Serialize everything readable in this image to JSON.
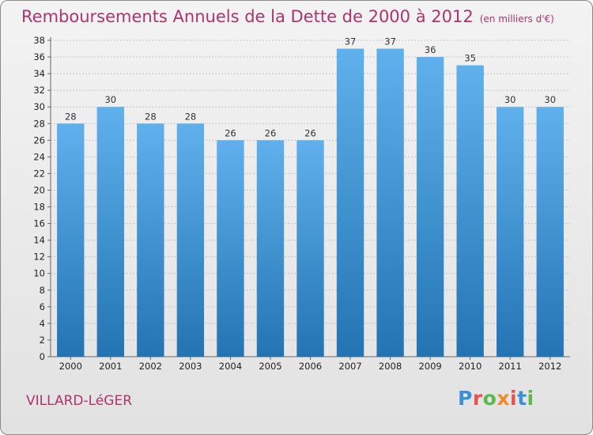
{
  "title": "Remboursements Annuels de la Dette de 2000 à 2012",
  "unit": "(en milliers d'€)",
  "commune": "VILLARD-LéGER",
  "logo": {
    "text": "Proxiti",
    "colors": [
      "#3b8fd6",
      "#e8534b",
      "#5bb84b",
      "#f08a24",
      "#e8534b",
      "#3b8fd6",
      "#5bb84b"
    ]
  },
  "chart_data": {
    "type": "bar",
    "categories": [
      "2000",
      "2001",
      "2002",
      "2003",
      "2004",
      "2005",
      "2006",
      "2007",
      "2008",
      "2009",
      "2010",
      "2011",
      "2012"
    ],
    "values": [
      28,
      30,
      28,
      28,
      26,
      26,
      26,
      37,
      37,
      36,
      35,
      30,
      30
    ],
    "ylim": [
      0,
      38
    ],
    "yticks": [
      0,
      2,
      4,
      6,
      8,
      10,
      12,
      14,
      16,
      18,
      20,
      22,
      24,
      26,
      28,
      30,
      32,
      34,
      36,
      38
    ],
    "grid": true,
    "bar_color_top": "#5fb0ec",
    "bar_color_bottom": "#2474b4"
  }
}
